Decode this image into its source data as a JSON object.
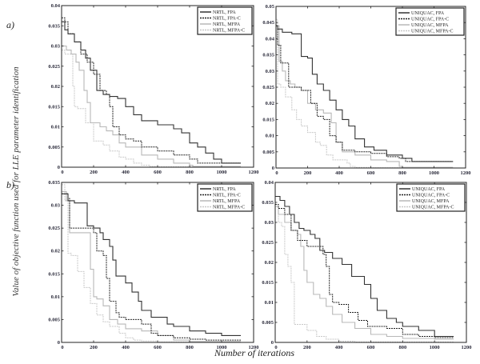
{
  "panel_labels": {
    "a": "a)",
    "b": "b)"
  },
  "ylabel": "Value of objective function used for LLE parameter identification",
  "xlabel": "Number of iterations",
  "colors": {
    "FPA": "#333333",
    "FPA-C": "#222222",
    "MFPA": "#b8b8b8",
    "MFPA-C": "#c8c8c8"
  },
  "chart_data": [
    {
      "type": "line",
      "id": "a-left",
      "xlim": [
        0,
        1200
      ],
      "ylim": [
        0,
        0.04
      ],
      "xticks": [
        "0",
        "200",
        "400",
        "600",
        "800",
        "1000",
        "1200"
      ],
      "yticks": [
        "0",
        "0.005",
        "0.01",
        "0.015",
        "0.02",
        "0.025",
        "0.03",
        "0.035",
        "0.04"
      ],
      "legend_position": "top-right",
      "series": [
        {
          "name": "NRTL, FPA",
          "style": "FPA",
          "x": [
            0,
            20,
            40,
            80,
            120,
            150,
            180,
            220,
            260,
            300,
            350,
            400,
            450,
            500,
            600,
            700,
            750,
            800,
            850,
            900,
            950,
            1000,
            1120
          ],
          "y": [
            0.036,
            0.034,
            0.033,
            0.031,
            0.029,
            0.027,
            0.024,
            0.019,
            0.018,
            0.0175,
            0.017,
            0.015,
            0.013,
            0.0115,
            0.0105,
            0.0095,
            0.0085,
            0.006,
            0.005,
            0.0035,
            0.002,
            0.001,
            0.001
          ]
        },
        {
          "name": "NRTL, FPA-C",
          "style": "FPA-C",
          "x": [
            0,
            20,
            40,
            80,
            120,
            160,
            200,
            240,
            280,
            300,
            320,
            360,
            400,
            450,
            500,
            600,
            700,
            800,
            850,
            1000,
            1120
          ],
          "y": [
            0.037,
            0.036,
            0.033,
            0.031,
            0.028,
            0.026,
            0.023,
            0.019,
            0.018,
            0.015,
            0.01,
            0.008,
            0.007,
            0.0065,
            0.005,
            0.004,
            0.003,
            0.002,
            0.001,
            0.001,
            0.001
          ]
        },
        {
          "name": "NRTL, MFPA",
          "style": "MFPA",
          "x": [
            0,
            30,
            60,
            90,
            110,
            140,
            160,
            180,
            200,
            240,
            280,
            320,
            360,
            400,
            500,
            600,
            700,
            800,
            820,
            1120
          ],
          "y": [
            0.03,
            0.029,
            0.028,
            0.026,
            0.024,
            0.019,
            0.016,
            0.011,
            0.011,
            0.01,
            0.009,
            0.008,
            0.006,
            0.005,
            0.003,
            0.002,
            0.001,
            0.0005,
            0.0002,
            0.0002
          ]
        },
        {
          "name": "NRTL, MFPA-C",
          "style": "MFPA-C",
          "x": [
            0,
            20,
            60,
            70,
            80,
            100,
            150,
            200,
            260,
            300,
            360,
            400,
            450,
            500,
            550,
            600,
            1120
          ],
          "y": [
            0.029,
            0.028,
            0.028,
            0.02,
            0.015,
            0.0145,
            0.011,
            0.0065,
            0.0055,
            0.004,
            0.0025,
            0.002,
            0.001,
            0.0005,
            0.0002,
            0.0001,
            0.0001
          ]
        }
      ]
    },
    {
      "type": "line",
      "id": "a-right",
      "xlim": [
        0,
        1200
      ],
      "ylim": [
        0,
        0.05
      ],
      "xticks": [
        "0",
        "200",
        "400",
        "600",
        "800",
        "1000",
        "1200"
      ],
      "yticks": [
        "0",
        "0.005",
        "0.01",
        "0.015",
        "0.02",
        "0.025",
        "0.03",
        "0.035",
        "0.04",
        "0.045",
        "0.05"
      ],
      "legend_position": "top-right",
      "series": [
        {
          "name": "UNIQUAC, FPA",
          "style": "FPA",
          "x": [
            0,
            10,
            40,
            100,
            150,
            160,
            200,
            230,
            260,
            300,
            340,
            380,
            420,
            460,
            500,
            560,
            620,
            700,
            800,
            860,
            880,
            1120
          ],
          "y": [
            0.044,
            0.043,
            0.042,
            0.0415,
            0.0415,
            0.0345,
            0.034,
            0.029,
            0.026,
            0.024,
            0.021,
            0.018,
            0.015,
            0.013,
            0.009,
            0.0065,
            0.0055,
            0.004,
            0.003,
            0.002,
            0.002,
            0.002
          ]
        },
        {
          "name": "UNIQUAC, FPA-C",
          "style": "FPA-C",
          "x": [
            0,
            10,
            30,
            60,
            80,
            120,
            160,
            200,
            220,
            260,
            300,
            340,
            380,
            420,
            500,
            600,
            700,
            780,
            820,
            880,
            1120
          ],
          "y": [
            0.044,
            0.038,
            0.0325,
            0.0325,
            0.025,
            0.025,
            0.024,
            0.024,
            0.02,
            0.016,
            0.015,
            0.01,
            0.008,
            0.0055,
            0.005,
            0.0045,
            0.0035,
            0.003,
            0.002,
            0.002,
            0.002
          ]
        },
        {
          "name": "UNIQUAC, MFPA",
          "style": "MFPA",
          "x": [
            0,
            20,
            40,
            60,
            90,
            120,
            160,
            200,
            250,
            300,
            350,
            380,
            420,
            500,
            600,
            700,
            780,
            800,
            1120
          ],
          "y": [
            0.044,
            0.033,
            0.03,
            0.027,
            0.026,
            0.025,
            0.024,
            0.02,
            0.018,
            0.017,
            0.014,
            0.008,
            0.005,
            0.004,
            0.0025,
            0.002,
            0.0005,
            0.0002,
            0.0002
          ]
        },
        {
          "name": "UNIQUAC, MFPA-C",
          "style": "MFPA-C",
          "x": [
            0,
            10,
            30,
            60,
            100,
            130,
            160,
            200,
            250,
            280,
            320,
            360,
            400,
            450,
            470,
            500,
            600,
            700,
            800,
            1120
          ],
          "y": [
            0.046,
            0.026,
            0.025,
            0.022,
            0.018,
            0.015,
            0.013,
            0.011,
            0.008,
            0.007,
            0.004,
            0.0025,
            0.0025,
            0.0015,
            0.0005,
            0.0002,
            0.0001,
            0.0001,
            0.0001,
            0.0001
          ]
        }
      ]
    },
    {
      "type": "line",
      "id": "b-left",
      "xlim": [
        0,
        1200
      ],
      "ylim": [
        0,
        0.035
      ],
      "xticks": [
        "0",
        "200",
        "400",
        "600",
        "800",
        "1000",
        "1200"
      ],
      "yticks": [
        "0",
        "0.005",
        "0.01",
        "0.015",
        "0.02",
        "0.025",
        "0.03",
        "0.035"
      ],
      "legend_position": "top-right",
      "series": [
        {
          "name": "NRTL, FPA",
          "style": "FPA",
          "x": [
            0,
            40,
            80,
            120,
            150,
            160,
            200,
            240,
            260,
            300,
            320,
            340,
            400,
            440,
            480,
            500,
            560,
            600,
            660,
            700,
            800,
            900,
            1000,
            1120
          ],
          "y": [
            0.0325,
            0.031,
            0.0305,
            0.0305,
            0.0305,
            0.0255,
            0.025,
            0.024,
            0.0225,
            0.021,
            0.018,
            0.0145,
            0.013,
            0.011,
            0.009,
            0.007,
            0.0055,
            0.0055,
            0.004,
            0.0035,
            0.0025,
            0.002,
            0.0015,
            0.0015
          ]
        },
        {
          "name": "NRTL, FPA-C",
          "style": "FPA-C",
          "x": [
            0,
            40,
            50,
            120,
            200,
            220,
            260,
            280,
            300,
            340,
            360,
            400,
            500,
            560,
            600,
            700,
            800,
            900,
            1120
          ],
          "y": [
            0.0325,
            0.0315,
            0.025,
            0.025,
            0.024,
            0.02,
            0.019,
            0.014,
            0.009,
            0.0065,
            0.0055,
            0.005,
            0.004,
            0.002,
            0.0015,
            0.001,
            0.0007,
            0.0005,
            0.0005
          ]
        },
        {
          "name": "NRTL, MFPA",
          "style": "MFPA",
          "x": [
            0,
            30,
            50,
            120,
            160,
            180,
            200,
            220,
            260,
            300,
            350,
            400,
            500,
            600,
            700,
            800,
            1120
          ],
          "y": [
            0.033,
            0.031,
            0.024,
            0.024,
            0.024,
            0.016,
            0.01,
            0.0095,
            0.008,
            0.005,
            0.004,
            0.003,
            0.0025,
            0.0015,
            0.0005,
            0.0002,
            0.0002
          ]
        },
        {
          "name": "NRTL, MFPA-C",
          "style": "MFPA-C",
          "x": [
            0,
            20,
            40,
            60,
            100,
            140,
            180,
            220,
            260,
            300,
            360,
            400,
            450,
            500,
            600,
            700,
            800,
            1120
          ],
          "y": [
            0.0345,
            0.031,
            0.0195,
            0.019,
            0.0155,
            0.012,
            0.0085,
            0.006,
            0.0045,
            0.0035,
            0.002,
            0.001,
            0.0005,
            0.0003,
            0.0001,
            0.0001,
            0.0001,
            0.0001
          ]
        }
      ]
    },
    {
      "type": "line",
      "id": "b-right",
      "xlim": [
        0,
        1200
      ],
      "ylim": [
        0,
        0.04
      ],
      "xticks": [
        "0",
        "200",
        "400",
        "600",
        "800",
        "1000",
        "1200"
      ],
      "yticks": [
        "0",
        "0.005",
        "0.01",
        "0.015",
        "0.02",
        "0.025",
        "0.03",
        "0.035",
        "0.04"
      ],
      "legend_position": "top-right",
      "series": [
        {
          "name": "UNIQUAC, FPA",
          "style": "FPA",
          "x": [
            0,
            30,
            60,
            90,
            120,
            150,
            180,
            220,
            250,
            280,
            310,
            360,
            420,
            480,
            560,
            600,
            640,
            700,
            760,
            800,
            900,
            1000,
            1120
          ],
          "y": [
            0.0365,
            0.0355,
            0.034,
            0.032,
            0.03,
            0.0285,
            0.028,
            0.027,
            0.026,
            0.023,
            0.0225,
            0.021,
            0.0195,
            0.0165,
            0.0145,
            0.011,
            0.008,
            0.006,
            0.005,
            0.004,
            0.003,
            0.0015,
            0.0015
          ]
        },
        {
          "name": "UNIQUAC, FPA-C",
          "style": "FPA-C",
          "x": [
            0,
            20,
            60,
            100,
            140,
            200,
            270,
            300,
            320,
            340,
            360,
            400,
            460,
            520,
            580,
            700,
            800,
            900,
            1000,
            1120
          ],
          "y": [
            0.0345,
            0.0335,
            0.032,
            0.028,
            0.0255,
            0.024,
            0.024,
            0.022,
            0.019,
            0.012,
            0.01,
            0.0095,
            0.0075,
            0.0055,
            0.004,
            0.0035,
            0.002,
            0.0015,
            0.0012,
            0.0012
          ]
        },
        {
          "name": "UNIQUAC, MFPA",
          "style": "MFPA",
          "x": [
            0,
            20,
            60,
            100,
            140,
            160,
            180,
            200,
            240,
            280,
            320,
            360,
            420,
            500,
            600,
            700,
            800,
            1000,
            1120
          ],
          "y": [
            0.034,
            0.032,
            0.03,
            0.028,
            0.027,
            0.024,
            0.018,
            0.015,
            0.012,
            0.011,
            0.009,
            0.007,
            0.005,
            0.0035,
            0.002,
            0.0015,
            0.001,
            0.0008,
            0.0008
          ]
        },
        {
          "name": "UNIQUAC, MFPA-C",
          "style": "MFPA-C",
          "x": [
            0,
            20,
            40,
            60,
            80,
            100,
            120,
            140,
            200,
            260,
            320,
            400,
            500,
            600,
            1120
          ],
          "y": [
            0.0345,
            0.03,
            0.029,
            0.022,
            0.019,
            0.015,
            0.0045,
            0.0045,
            0.003,
            0.0015,
            0.0008,
            0.0003,
            0.0001,
            0.0001,
            0.0001
          ]
        }
      ]
    }
  ]
}
